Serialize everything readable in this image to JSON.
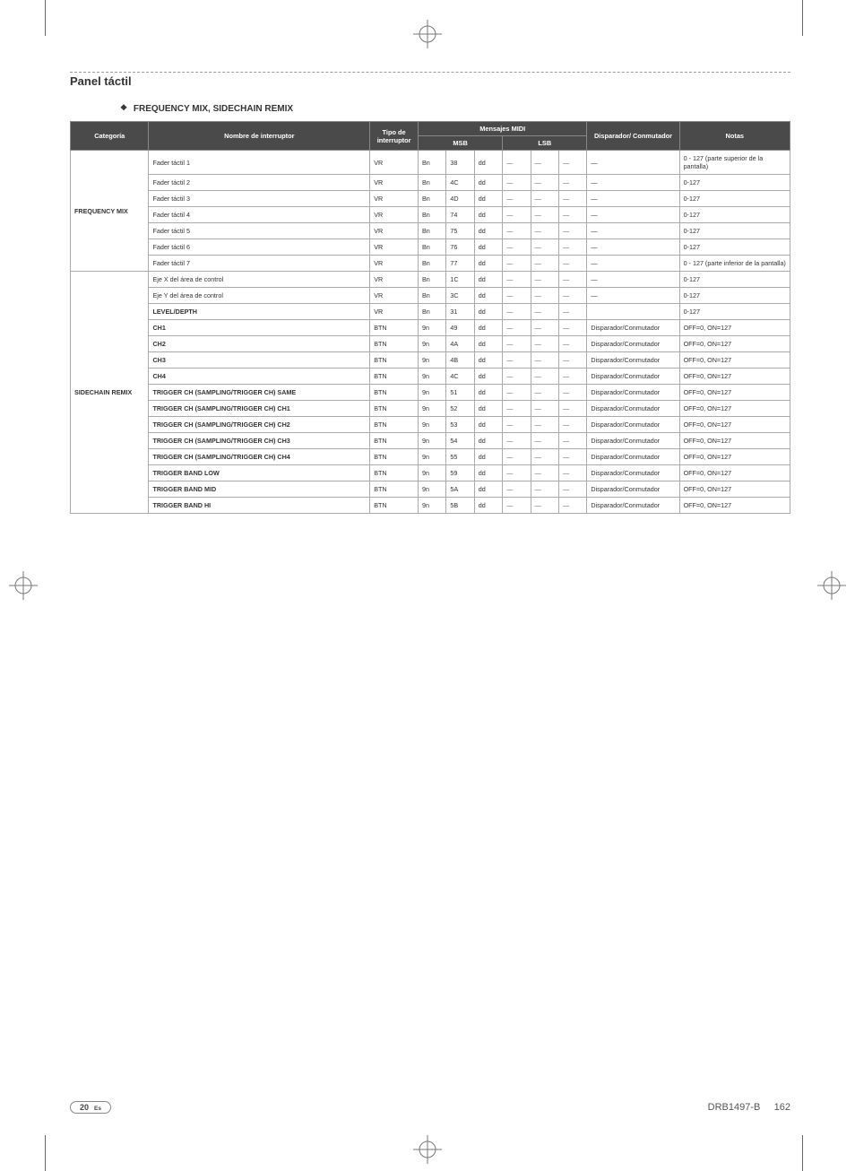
{
  "page": {
    "panel_title": "Panel táctil",
    "subtitle": "FREQUENCY MIX, SIDECHAIN REMIX",
    "diamond": "❖"
  },
  "table": {
    "headers": {
      "categoria": "Categoría",
      "nombre": "Nombre de interruptor",
      "tipo": "Tipo de interruptor",
      "mensajes": "Mensajes MIDI",
      "msb": "MSB",
      "lsb": "LSB",
      "disparador": "Disparador/ Conmutador",
      "notas": "Notas"
    },
    "cat_freq": "FREQUENCY MIX",
    "cat_side": "SIDECHAIN REMIX",
    "rows": [
      {
        "name": "Fader táctil 1",
        "tipo": "VR",
        "m1": "Bn",
        "m2": "38",
        "m3": "dd",
        "l1": "—",
        "l2": "—",
        "l3": "—",
        "disp": "—",
        "notas": "0 - 127 (parte superior de la pantalla)",
        "bold": false
      },
      {
        "name": "Fader táctil 2",
        "tipo": "VR",
        "m1": "Bn",
        "m2": "4C",
        "m3": "dd",
        "l1": "—",
        "l2": "—",
        "l3": "—",
        "disp": "—",
        "notas": "0-127",
        "bold": false
      },
      {
        "name": "Fader táctil 3",
        "tipo": "VR",
        "m1": "Bn",
        "m2": "4D",
        "m3": "dd",
        "l1": "—",
        "l2": "—",
        "l3": "—",
        "disp": "—",
        "notas": "0-127",
        "bold": false
      },
      {
        "name": "Fader táctil 4",
        "tipo": "VR",
        "m1": "Bn",
        "m2": "74",
        "m3": "dd",
        "l1": "—",
        "l2": "—",
        "l3": "—",
        "disp": "—",
        "notas": "0-127",
        "bold": false
      },
      {
        "name": "Fader táctil 5",
        "tipo": "VR",
        "m1": "Bn",
        "m2": "75",
        "m3": "dd",
        "l1": "—",
        "l2": "—",
        "l3": "—",
        "disp": "—",
        "notas": "0-127",
        "bold": false
      },
      {
        "name": "Fader táctil 6",
        "tipo": "VR",
        "m1": "Bn",
        "m2": "76",
        "m3": "dd",
        "l1": "—",
        "l2": "—",
        "l3": "—",
        "disp": "—",
        "notas": "0-127",
        "bold": false
      },
      {
        "name": "Fader táctil 7",
        "tipo": "VR",
        "m1": "Bn",
        "m2": "77",
        "m3": "dd",
        "l1": "—",
        "l2": "—",
        "l3": "—",
        "disp": "—",
        "notas": "0 - 127 (parte inferior de la pantalla)",
        "bold": false
      },
      {
        "name": "Eje X del área de control",
        "tipo": "VR",
        "m1": "Bn",
        "m2": "1C",
        "m3": "dd",
        "l1": "—",
        "l2": "—",
        "l3": "—",
        "disp": "—",
        "notas": "0-127",
        "bold": false
      },
      {
        "name": "Eje Y del área de control",
        "tipo": "VR",
        "m1": "Bn",
        "m2": "3C",
        "m3": "dd",
        "l1": "—",
        "l2": "—",
        "l3": "—",
        "disp": "—",
        "notas": "0-127",
        "bold": false
      },
      {
        "name": "LEVEL/DEPTH",
        "tipo": "VR",
        "m1": "Bn",
        "m2": "31",
        "m3": "dd",
        "l1": "—",
        "l2": "—",
        "l3": "—",
        "disp": "",
        "notas": "0-127",
        "bold": true
      },
      {
        "name": "CH1",
        "tipo": "BTN",
        "m1": "9n",
        "m2": "49",
        "m3": "dd",
        "l1": "—",
        "l2": "—",
        "l3": "—",
        "disp": "Disparador/Conmutador",
        "notas": "OFF=0, ON=127",
        "bold": true
      },
      {
        "name": "CH2",
        "tipo": "BTN",
        "m1": "9n",
        "m2": "4A",
        "m3": "dd",
        "l1": "—",
        "l2": "—",
        "l3": "—",
        "disp": "Disparador/Conmutador",
        "notas": "OFF=0, ON=127",
        "bold": true
      },
      {
        "name": "CH3",
        "tipo": "BTN",
        "m1": "9n",
        "m2": "4B",
        "m3": "dd",
        "l1": "—",
        "l2": "—",
        "l3": "—",
        "disp": "Disparador/Conmutador",
        "notas": "OFF=0, ON=127",
        "bold": true
      },
      {
        "name": "CH4",
        "tipo": "BTN",
        "m1": "9n",
        "m2": "4C",
        "m3": "dd",
        "l1": "—",
        "l2": "—",
        "l3": "—",
        "disp": "Disparador/Conmutador",
        "notas": "OFF=0, ON=127",
        "bold": true
      },
      {
        "name": "TRIGGER CH (SAMPLING/TRIGGER CH) SAME",
        "tipo": "BTN",
        "m1": "9n",
        "m2": "51",
        "m3": "dd",
        "l1": "—",
        "l2": "—",
        "l3": "—",
        "disp": "Disparador/Conmutador",
        "notas": "OFF=0, ON=127",
        "bold": true
      },
      {
        "name": "TRIGGER CH (SAMPLING/TRIGGER CH) CH1",
        "tipo": "BTN",
        "m1": "9n",
        "m2": "52",
        "m3": "dd",
        "l1": "—",
        "l2": "—",
        "l3": "—",
        "disp": "Disparador/Conmutador",
        "notas": "OFF=0, ON=127",
        "bold": true
      },
      {
        "name": "TRIGGER CH (SAMPLING/TRIGGER CH) CH2",
        "tipo": "BTN",
        "m1": "9n",
        "m2": "53",
        "m3": "dd",
        "l1": "—",
        "l2": "—",
        "l3": "—",
        "disp": "Disparador/Conmutador",
        "notas": "OFF=0, ON=127",
        "bold": true
      },
      {
        "name": "TRIGGER CH (SAMPLING/TRIGGER CH) CH3",
        "tipo": "BTN",
        "m1": "9n",
        "m2": "54",
        "m3": "dd",
        "l1": "—",
        "l2": "—",
        "l3": "—",
        "disp": "Disparador/Conmutador",
        "notas": "OFF=0, ON=127",
        "bold": true
      },
      {
        "name": "TRIGGER CH (SAMPLING/TRIGGER CH) CH4",
        "tipo": "BTN",
        "m1": "9n",
        "m2": "55",
        "m3": "dd",
        "l1": "—",
        "l2": "—",
        "l3": "—",
        "disp": "Disparador/Conmutador",
        "notas": "OFF=0, ON=127",
        "bold": true
      },
      {
        "name": "TRIGGER BAND LOW",
        "tipo": "BTN",
        "m1": "9n",
        "m2": "59",
        "m3": "dd",
        "l1": "—",
        "l2": "—",
        "l3": "—",
        "disp": "Disparador/Conmutador",
        "notas": "OFF=0, ON=127",
        "bold": true
      },
      {
        "name": "TRIGGER BAND MID",
        "tipo": "BTN",
        "m1": "9n",
        "m2": "5A",
        "m3": "dd",
        "l1": "—",
        "l2": "—",
        "l3": "—",
        "disp": "Disparador/Conmutador",
        "notas": "OFF=0, ON=127",
        "bold": true
      },
      {
        "name": "TRIGGER BAND HI",
        "tipo": "BTN",
        "m1": "9n",
        "m2": "5B",
        "m3": "dd",
        "l1": "—",
        "l2": "—",
        "l3": "—",
        "disp": "Disparador/Conmutador",
        "notas": "OFF=0, ON=127",
        "bold": true
      }
    ],
    "col_widths": [
      "78px",
      "220px",
      "48px",
      "28px",
      "28px",
      "28px",
      "28px",
      "28px",
      "28px",
      "92px",
      "110px"
    ]
  },
  "footer": {
    "page_num": "20",
    "lang": "Es",
    "doc_code": "DRB1497-B",
    "doc_page": "162"
  },
  "colors": {
    "header_bg": "#4a4a4a",
    "header_text": "#ffffff",
    "border": "#aaaaaa",
    "text": "#333333"
  }
}
